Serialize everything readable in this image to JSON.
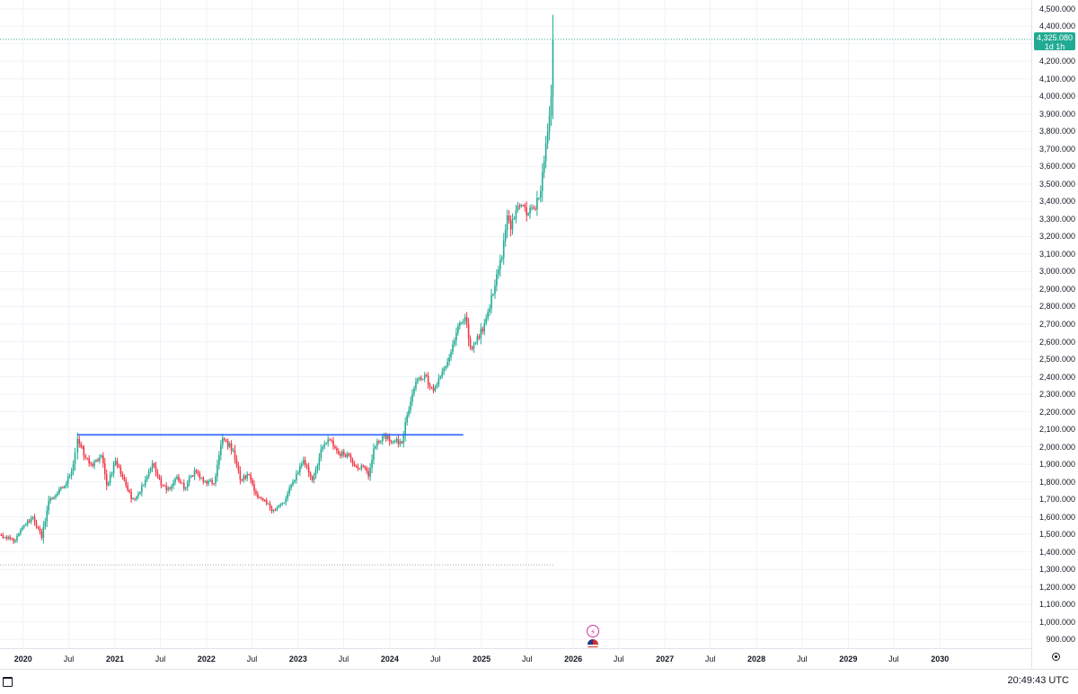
{
  "chart_data": {
    "type": "candlestick",
    "title": "",
    "xlabel": "",
    "ylabel": "",
    "x_range": [
      "2019-10-01",
      "2030-12-31"
    ],
    "ylim": [
      850,
      4550
    ],
    "grid": true,
    "price_ticks": [
      "4,500.000",
      "4,400.000",
      "4,300.000",
      "4,200.000",
      "4,100.000",
      "4,000.000",
      "3,900.000",
      "3,800.000",
      "3,700.000",
      "3,600.000",
      "3,500.000",
      "3,400.000",
      "3,300.000",
      "3,200.000",
      "3,100.000",
      "3,000.000",
      "2,900.000",
      "2,800.000",
      "2,700.000",
      "2,600.000",
      "2,500.000",
      "2,400.000",
      "2,300.000",
      "2,200.000",
      "2,100.000",
      "2,000.000",
      "1,900.000",
      "1,800.000",
      "1,700.000",
      "1,600.000",
      "1,500.000",
      "1,400.000",
      "1,300.000",
      "1,200.000",
      "1,100.000",
      "1,000.000",
      "900.000"
    ],
    "price_tick_values": [
      4500,
      4400,
      4300,
      4200,
      4100,
      4000,
      3900,
      3800,
      3700,
      3600,
      3500,
      3400,
      3300,
      3200,
      3100,
      3000,
      2900,
      2800,
      2700,
      2600,
      2500,
      2400,
      2300,
      2200,
      2100,
      2000,
      1900,
      1800,
      1700,
      1600,
      1500,
      1400,
      1300,
      1200,
      1100,
      1000,
      900
    ],
    "time_ticks": [
      {
        "label": "2020",
        "date": "2020-01-01",
        "year": true
      },
      {
        "label": "Jul",
        "date": "2020-07-01",
        "year": false
      },
      {
        "label": "2021",
        "date": "2021-01-01",
        "year": true
      },
      {
        "label": "Jul",
        "date": "2021-07-01",
        "year": false
      },
      {
        "label": "2022",
        "date": "2022-01-01",
        "year": true
      },
      {
        "label": "Jul",
        "date": "2022-07-01",
        "year": false
      },
      {
        "label": "2023",
        "date": "2023-01-01",
        "year": true
      },
      {
        "label": "Jul",
        "date": "2023-07-01",
        "year": false
      },
      {
        "label": "2024",
        "date": "2024-01-01",
        "year": true
      },
      {
        "label": "Jul",
        "date": "2024-07-01",
        "year": false
      },
      {
        "label": "2025",
        "date": "2025-01-01",
        "year": true
      },
      {
        "label": "Jul",
        "date": "2025-07-01",
        "year": false
      },
      {
        "label": "2026",
        "date": "2026-01-01",
        "year": true
      },
      {
        "label": "Jul",
        "date": "2026-07-01",
        "year": false
      },
      {
        "label": "2027",
        "date": "2027-01-01",
        "year": true
      },
      {
        "label": "Jul",
        "date": "2027-07-01",
        "year": false
      },
      {
        "label": "2028",
        "date": "2028-01-01",
        "year": true
      },
      {
        "label": "Jul",
        "date": "2028-07-01",
        "year": false
      },
      {
        "label": "2029",
        "date": "2029-01-01",
        "year": true
      },
      {
        "label": "Jul",
        "date": "2029-07-01",
        "year": false
      },
      {
        "label": "2030",
        "date": "2030-01-01",
        "year": true
      }
    ],
    "resistance_line": {
      "price": 2068,
      "start": "2020-08-05",
      "end": "2024-10-20",
      "color": "#2962ff"
    },
    "support_level": {
      "price": 1325,
      "start": "2019-10-01",
      "end": "2025-10-15"
    },
    "last_price": {
      "value": 4325.08,
      "label": "4,325.080",
      "countdown": "1d 1h",
      "color": "#22ab94"
    },
    "up_color": "#22ab94",
    "down_color": "#f23645",
    "weekly_closes": [
      {
        "date": "2019-09-29",
        "close": 1497
      },
      {
        "date": "2019-10-27",
        "close": 1475
      },
      {
        "date": "2019-12-01",
        "close": 1465
      },
      {
        "date": "2020-01-05",
        "close": 1550
      },
      {
        "date": "2020-02-09",
        "close": 1600
      },
      {
        "date": "2020-03-15",
        "close": 1480
      },
      {
        "date": "2020-04-12",
        "close": 1690
      },
      {
        "date": "2020-05-17",
        "close": 1735
      },
      {
        "date": "2020-06-21",
        "close": 1790
      },
      {
        "date": "2020-07-19",
        "close": 1900
      },
      {
        "date": "2020-08-05",
        "close": 2045
      },
      {
        "date": "2020-08-30",
        "close": 1950
      },
      {
        "date": "2020-10-04",
        "close": 1890
      },
      {
        "date": "2020-11-08",
        "close": 1950
      },
      {
        "date": "2020-11-29",
        "close": 1780
      },
      {
        "date": "2021-01-03",
        "close": 1920
      },
      {
        "date": "2021-02-07",
        "close": 1810
      },
      {
        "date": "2021-03-07",
        "close": 1700
      },
      {
        "date": "2021-04-04",
        "close": 1730
      },
      {
        "date": "2021-05-30",
        "close": 1905
      },
      {
        "date": "2021-07-04",
        "close": 1780
      },
      {
        "date": "2021-08-08",
        "close": 1760
      },
      {
        "date": "2021-09-05",
        "close": 1830
      },
      {
        "date": "2021-10-03",
        "close": 1760
      },
      {
        "date": "2021-11-14",
        "close": 1865
      },
      {
        "date": "2021-12-19",
        "close": 1800
      },
      {
        "date": "2022-01-30",
        "close": 1790
      },
      {
        "date": "2022-03-06",
        "close": 2050
      },
      {
        "date": "2022-04-17",
        "close": 1980
      },
      {
        "date": "2022-05-15",
        "close": 1810
      },
      {
        "date": "2022-06-19",
        "close": 1840
      },
      {
        "date": "2022-07-24",
        "close": 1710
      },
      {
        "date": "2022-09-25",
        "close": 1640
      },
      {
        "date": "2022-11-06",
        "close": 1680
      },
      {
        "date": "2022-12-11",
        "close": 1800
      },
      {
        "date": "2023-01-22",
        "close": 1925
      },
      {
        "date": "2023-02-26",
        "close": 1810
      },
      {
        "date": "2023-04-09",
        "close": 2000
      },
      {
        "date": "2023-05-07",
        "close": 2040
      },
      {
        "date": "2023-06-11",
        "close": 1960
      },
      {
        "date": "2023-07-16",
        "close": 1960
      },
      {
        "date": "2023-08-20",
        "close": 1890
      },
      {
        "date": "2023-09-24",
        "close": 1880
      },
      {
        "date": "2023-10-08",
        "close": 1830
      },
      {
        "date": "2023-10-29",
        "close": 1990
      },
      {
        "date": "2023-12-03",
        "close": 2060
      },
      {
        "date": "2024-01-14",
        "close": 2030
      },
      {
        "date": "2024-02-18",
        "close": 2020
      },
      {
        "date": "2024-03-10",
        "close": 2180
      },
      {
        "date": "2024-04-14",
        "close": 2370
      },
      {
        "date": "2024-05-19",
        "close": 2410
      },
      {
        "date": "2024-06-23",
        "close": 2320
      },
      {
        "date": "2024-07-21",
        "close": 2400
      },
      {
        "date": "2024-08-25",
        "close": 2510
      },
      {
        "date": "2024-09-22",
        "close": 2650
      },
      {
        "date": "2024-10-27",
        "close": 2740
      },
      {
        "date": "2024-11-17",
        "close": 2570
      },
      {
        "date": "2024-12-22",
        "close": 2620
      },
      {
        "date": "2025-01-26",
        "close": 2770
      },
      {
        "date": "2025-02-23",
        "close": 2920
      },
      {
        "date": "2025-03-23",
        "close": 3080
      },
      {
        "date": "2025-04-13",
        "close": 3320
      },
      {
        "date": "2025-04-27",
        "close": 3240
      },
      {
        "date": "2025-05-18",
        "close": 3350
      },
      {
        "date": "2025-06-15",
        "close": 3380
      },
      {
        "date": "2025-07-06",
        "close": 3330
      },
      {
        "date": "2025-07-27",
        "close": 3360
      },
      {
        "date": "2025-08-24",
        "close": 3460
      },
      {
        "date": "2025-09-07",
        "close": 3630
      },
      {
        "date": "2025-09-21",
        "close": 3800
      },
      {
        "date": "2025-09-28",
        "close": 3890
      },
      {
        "date": "2025-10-05",
        "close": 4000
      },
      {
        "date": "2025-10-12",
        "close": 4325.08
      }
    ]
  },
  "bottom_bar": {
    "clock": "20:49:43 UTC"
  },
  "colors": {
    "grid": "#f0f3fa",
    "text": "#131722",
    "border": "#e0e3eb"
  },
  "icons": {
    "calendar": "calendar-icon",
    "settings": "gear-icon",
    "dividend": "lightning-icon",
    "economic_event": "us-flag-icon"
  }
}
